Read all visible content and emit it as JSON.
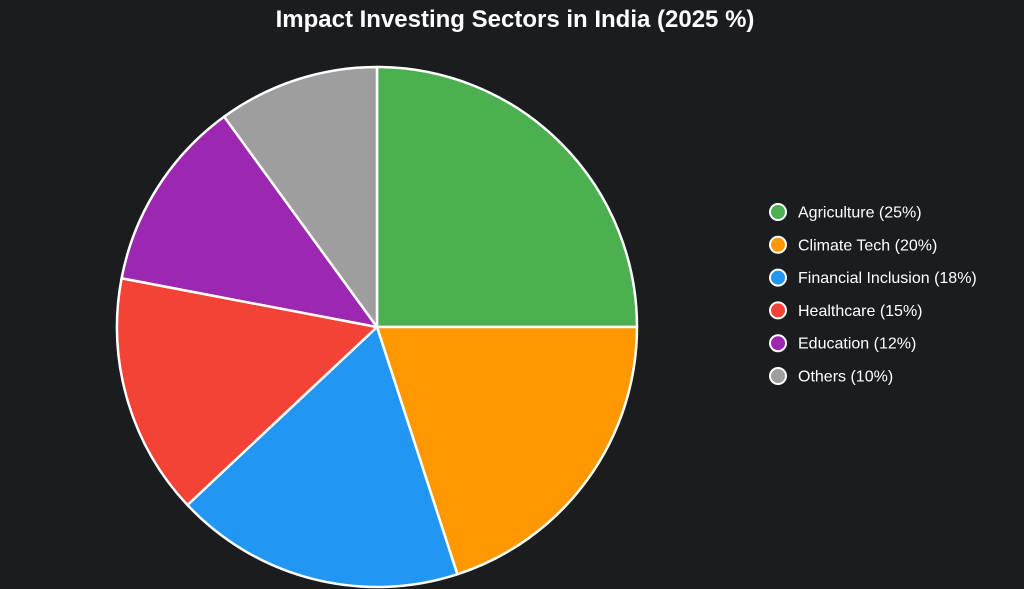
{
  "chart_data": {
    "type": "pie",
    "title": "Impact Investing Sectors in India (2025 %)",
    "legend_position": "right",
    "slices": [
      {
        "label": "Agriculture (25%)",
        "value": 25,
        "color": "#4caf50"
      },
      {
        "label": "Climate Tech (20%)",
        "value": 20,
        "color": "#ff9800"
      },
      {
        "label": "Financial Inclusion (18%)",
        "value": 18,
        "color": "#2196f3"
      },
      {
        "label": "Healthcare (15%)",
        "value": 15,
        "color": "#f44336"
      },
      {
        "label": "Education (12%)",
        "value": 12,
        "color": "#9c27b0"
      },
      {
        "label": "Others (10%)",
        "value": 10,
        "color": "#9e9e9e"
      }
    ]
  }
}
